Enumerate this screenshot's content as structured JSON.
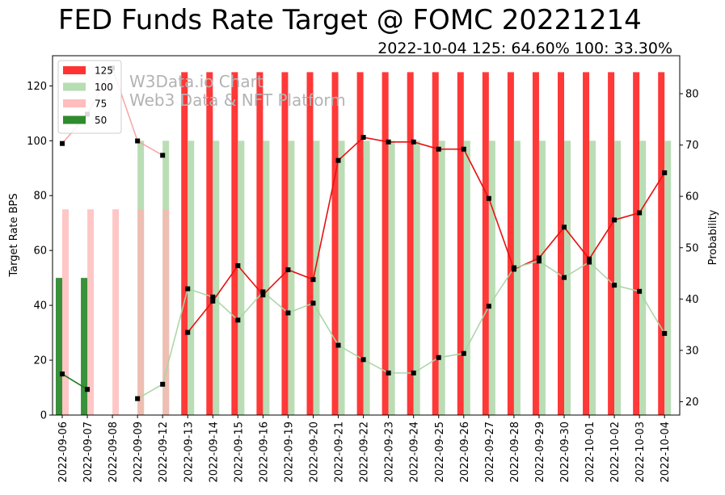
{
  "chart_data": {
    "type": "bar",
    "title": "FED Funds Rate Target @ FOMC 20221214",
    "subtitle": "2022-10-04 125: 64.60% 100: 33.30%",
    "watermark": [
      "W3Data.io Chart",
      "Web3 Data & NFT Platform"
    ],
    "ylabel": "Target Rate BPS",
    "y2label": "Probability",
    "ylim": [
      0,
      131
    ],
    "y2lim": [
      17.4,
      87.4
    ],
    "yticks": [
      0,
      20,
      40,
      60,
      80,
      100,
      120
    ],
    "y2ticks": [
      20,
      30,
      40,
      50,
      60,
      70,
      80
    ],
    "legend_position": "top-left",
    "categories": [
      "2022-09-06",
      "2022-09-07",
      "2022-09-08",
      "2022-09-09",
      "2022-09-12",
      "2022-09-13",
      "2022-09-14",
      "2022-09-15",
      "2022-09-16",
      "2022-09-19",
      "2022-09-20",
      "2022-09-21",
      "2022-09-22",
      "2022-09-23",
      "2022-09-24",
      "2022-09-25",
      "2022-09-26",
      "2022-09-27",
      "2022-09-28",
      "2022-09-29",
      "2022-09-30",
      "2022-10-01",
      "2022-10-02",
      "2022-10-03",
      "2022-10-04"
    ],
    "series": [
      {
        "name": "125",
        "color": "#ff0000",
        "bar_values": [
          null,
          null,
          null,
          null,
          null,
          125,
          125,
          125,
          125,
          125,
          125,
          125,
          125,
          125,
          125,
          125,
          125,
          125,
          125,
          125,
          125,
          125,
          125,
          125,
          125
        ],
        "probabilities": [
          null,
          null,
          null,
          null,
          null,
          33.5,
          39.6,
          46.5,
          40.8,
          45.7,
          43.8,
          67.0,
          71.5,
          70.6,
          70.6,
          69.2,
          69.2,
          59.6,
          45.8,
          48.0,
          54.0,
          47.8,
          55.4,
          56.8,
          64.6
        ]
      },
      {
        "name": "100",
        "color": "#a9d5a3",
        "bar_values": [
          null,
          null,
          null,
          100,
          100,
          100,
          100,
          100,
          100,
          100,
          100,
          100,
          100,
          100,
          100,
          100,
          100,
          100,
          100,
          100,
          100,
          100,
          100,
          100,
          100
        ],
        "probabilities": [
          null,
          null,
          null,
          20.6,
          23.4,
          42.0,
          40.4,
          35.9,
          41.4,
          37.3,
          39.2,
          31.0,
          28.2,
          25.6,
          25.6,
          28.6,
          29.4,
          38.6,
          46.1,
          47.4,
          44.2,
          47.2,
          42.7,
          41.5,
          33.3
        ]
      },
      {
        "name": "75",
        "color": "#ffb3b3",
        "bar_values": [
          75,
          75,
          75,
          75,
          75,
          null,
          null,
          null,
          null,
          null,
          null,
          null,
          null,
          null,
          null,
          null,
          null,
          null,
          null,
          null,
          null,
          null,
          null,
          null,
          null
        ],
        "probabilities": [
          70.3,
          76.0,
          85.0,
          70.8,
          68.0,
          null,
          null,
          null,
          null,
          null,
          null,
          null,
          null,
          null,
          null,
          null,
          null,
          null,
          null,
          null,
          null,
          null,
          null,
          null,
          null
        ]
      },
      {
        "name": "50",
        "color": "#2e8b2e",
        "bar_values": [
          50,
          50,
          null,
          null,
          null,
          null,
          null,
          null,
          null,
          null,
          null,
          null,
          null,
          null,
          null,
          null,
          null,
          null,
          null,
          null,
          null,
          null,
          null,
          null,
          null
        ],
        "probabilities": [
          25.4,
          22.4,
          null,
          null,
          null,
          null,
          null,
          null,
          null,
          null,
          null,
          null,
          null,
          null,
          null,
          null,
          null,
          null,
          null,
          null,
          null,
          null,
          null,
          null,
          null
        ]
      }
    ]
  }
}
